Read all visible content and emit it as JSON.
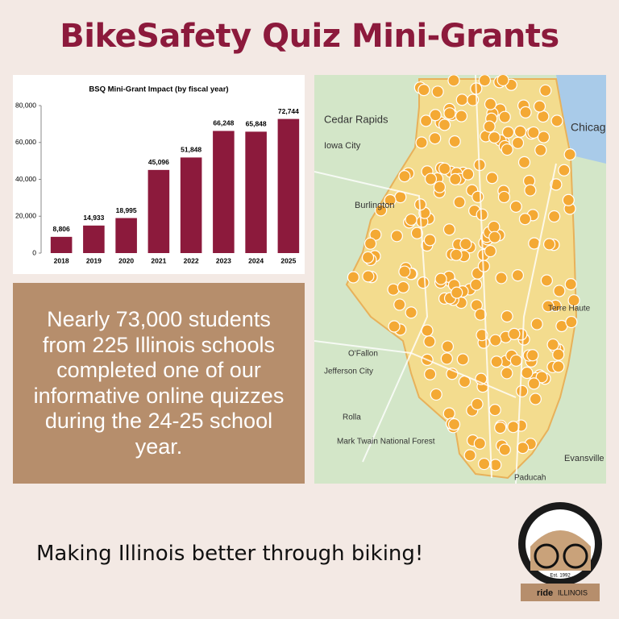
{
  "header": {
    "title": "BikeSafety Quiz Mini-Grants"
  },
  "chart_data": {
    "type": "bar",
    "title": "BSQ Mini-Grant Impact (by fiscal year)",
    "categories": [
      "2018",
      "2019",
      "2020",
      "2021",
      "2022",
      "2023",
      "2024",
      "2025"
    ],
    "values": [
      8806,
      14933,
      18995,
      45096,
      51848,
      66248,
      65848,
      72744
    ],
    "value_labels": [
      "8,806",
      "14,933",
      "18,995",
      "45,096",
      "51,848",
      "66,248",
      "65,848",
      "72,744"
    ],
    "color": "#8c1a3c",
    "ylim": [
      0,
      80000
    ],
    "yticks": [
      0,
      {
        "value": 20000,
        "label": "20,000"
      },
      {
        "value": 40000,
        "label": "40,000"
      },
      {
        "value": 60000,
        "label": "60,000"
      },
      {
        "value": 80000,
        "label": "80,000"
      }
    ]
  },
  "callout": {
    "text": "Nearly 73,000 students from 225 Illinois schools completed one of our informative online quizzes during the 24-25 school year."
  },
  "map": {
    "labels": [
      "Cedar Rapids",
      "Iowa City",
      "Chicago",
      "Burlington",
      "Terre Haute",
      "O'Fallon",
      "Jefferson City",
      "Rolla",
      "Mark Twain National Forest",
      "Evansville",
      "Paducah"
    ]
  },
  "tagline": "Making Illinois better through biking!",
  "logo": {
    "est": "Est. 1992",
    "ride": "ride",
    "state": "ILLINOIS"
  }
}
